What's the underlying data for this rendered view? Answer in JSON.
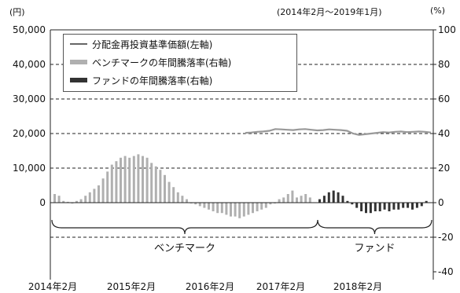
{
  "header": {
    "unit_left": "(円)",
    "period": "(2014年2月〜2019年1月)",
    "unit_right": "(%)"
  },
  "chart_data": {
    "type": "bar",
    "left_axis": {
      "ticks": [
        "50,000",
        "40,000",
        "30,000",
        "20,000",
        "10,000",
        "0"
      ],
      "min": -20000,
      "max": 50000
    },
    "right_axis": {
      "ticks": [
        "100",
        "80",
        "60",
        "40",
        "20",
        "0",
        "-20",
        "-40"
      ],
      "min": -40,
      "max": 100
    },
    "x_tick_labels": [
      "2014年2月",
      "2015年2月",
      "2016年2月",
      "2017年2月",
      "2018年2月"
    ],
    "grid": "dashed horizontal",
    "legend": {
      "placement": "top-left",
      "entries": [
        {
          "label": "分配金再投資基準価額(左軸)",
          "color": "#666666",
          "kind": "line"
        },
        {
          "label": "ベンチマークの年間騰落率(右軸)",
          "color": "#b0b0b0",
          "kind": "bar"
        },
        {
          "label": "ファンドの年間騰落率(右軸)",
          "color": "#333333",
          "kind": "bar"
        }
      ]
    },
    "series": [
      {
        "name": "ベンチマークの年間騰落率(右軸)",
        "color": "#b0b0b0",
        "values": [
          5,
          4,
          1,
          0.5,
          -0.5,
          1,
          2,
          4,
          6,
          8,
          10,
          14,
          18,
          22,
          24,
          26,
          27,
          26,
          27,
          28,
          27,
          26,
          23,
          21,
          19,
          16,
          12,
          9,
          6,
          4,
          2,
          0,
          -1,
          -2,
          -3,
          -4,
          -5,
          -6,
          -6,
          -7,
          -8,
          -8,
          -9,
          -8,
          -7,
          -6,
          -5,
          -4,
          -3,
          -1,
          0,
          2,
          3,
          5,
          7,
          3,
          4,
          5,
          3
        ]
      },
      {
        "name": "ファンドの年間騰落率(右軸)",
        "color": "#333333",
        "values": [
          2,
          4,
          6,
          7,
          6,
          4,
          1,
          -1,
          -3,
          -5,
          -6,
          -6,
          -5,
          -5,
          -4,
          -5,
          -4,
          -4,
          -3,
          -3,
          -4,
          -3,
          -2,
          1
        ]
      },
      {
        "name": "分配金再投資基準価額(左軸)",
        "color": "#999999",
        "values": [
          20200,
          20300,
          20500,
          20600,
          20800,
          21300,
          21200,
          21100,
          21000,
          21200,
          21300,
          21100,
          20900,
          21000,
          21200,
          21100,
          21000,
          20800,
          20000,
          19600,
          19800,
          20000,
          20200,
          20400,
          20300,
          20500,
          20600,
          20400,
          20500,
          20600,
          20500,
          20300
        ]
      }
    ],
    "bracket_labels": [
      "ベンチマーク",
      "ファンド"
    ]
  }
}
